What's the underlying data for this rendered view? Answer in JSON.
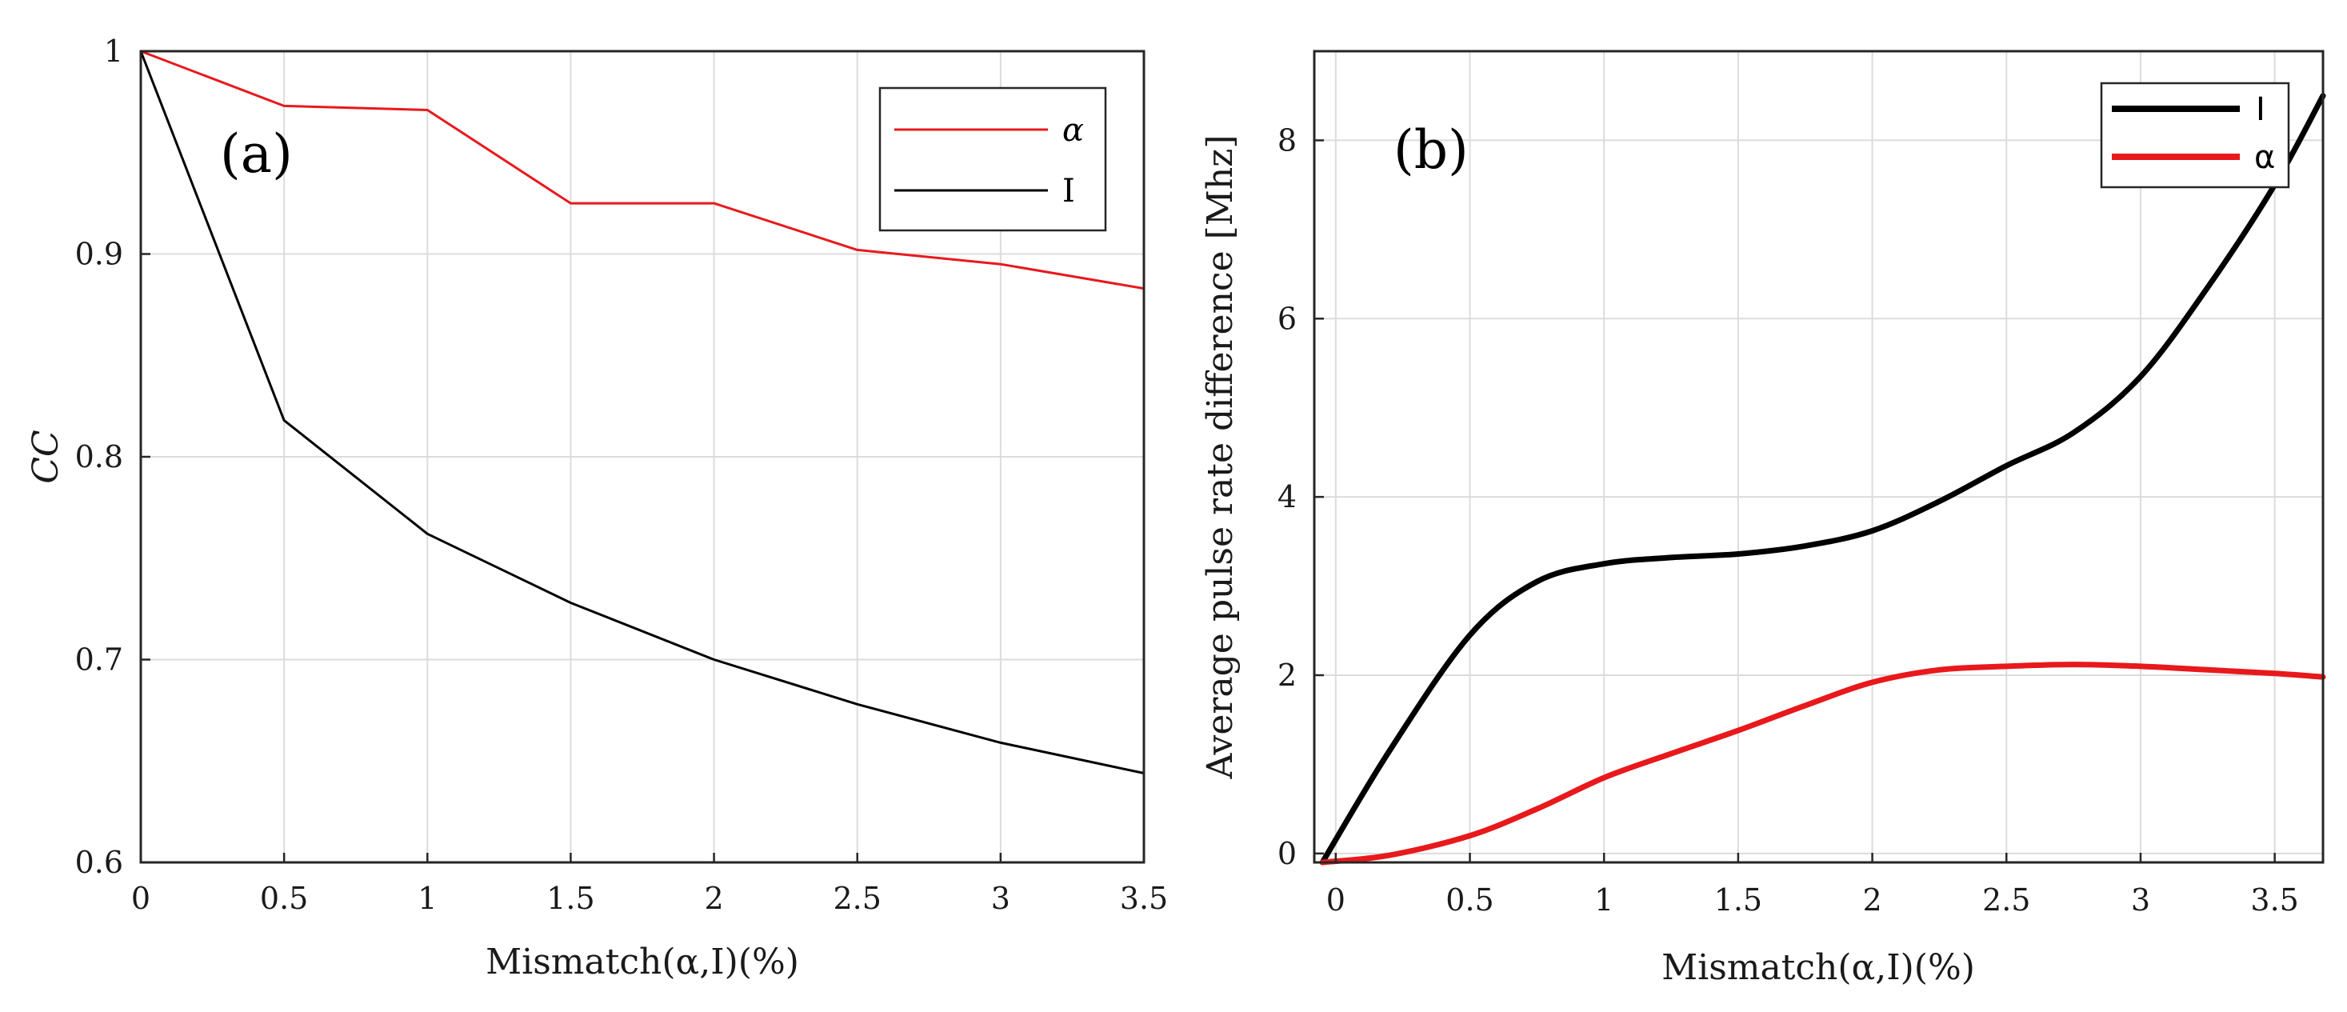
{
  "chart_data": [
    {
      "type": "line",
      "panel_label": "(a)",
      "xlabel": "Mismatch(α,I)(%)",
      "ylabel": "CC",
      "xlim": [
        0,
        3.5
      ],
      "ylim": [
        0.6,
        1.0
      ],
      "grid": true,
      "legend_position": "top-right",
      "x_ticks": [
        0,
        0.5,
        1,
        1.5,
        2,
        2.5,
        3,
        3.5
      ],
      "x_tick_labels": [
        "0",
        "0.5",
        "1",
        "1.5",
        "2",
        "2.5",
        "3",
        "3.5"
      ],
      "y_ticks": [
        0.6,
        0.7,
        0.8,
        0.9,
        1.0
      ],
      "y_tick_labels": [
        "0.6",
        "0.7",
        "0.8",
        "0.9",
        "1"
      ],
      "x": [
        0,
        0.5,
        1,
        1.5,
        2,
        2.5,
        3,
        3.5
      ],
      "series": [
        {
          "name": "α",
          "color": "#e8191c",
          "values": [
            1.0,
            0.973,
            0.971,
            0.925,
            0.925,
            0.902,
            0.895,
            0.883
          ]
        },
        {
          "name": "I",
          "color": "#000000",
          "values": [
            1.0,
            0.818,
            0.762,
            0.728,
            0.7,
            0.678,
            0.659,
            0.644
          ]
        }
      ]
    },
    {
      "type": "line",
      "panel_label": "(b)",
      "xlabel": "Mismatch(α,I)(%)",
      "ylabel": "Average pulse rate difference [Mhz]",
      "xlim": [
        -0.08,
        3.68
      ],
      "ylim": [
        -0.1,
        9.0
      ],
      "grid": true,
      "legend_position": "top-right",
      "x_ticks": [
        0,
        0.5,
        1,
        1.5,
        2,
        2.5,
        3,
        3.5
      ],
      "x_tick_labels": [
        "0",
        "0.5",
        "1",
        "1.5",
        "2",
        "2.5",
        "3",
        "3.5"
      ],
      "y_ticks": [
        0,
        2,
        4,
        6,
        8
      ],
      "y_tick_labels": [
        "0",
        "2",
        "4",
        "6",
        "8"
      ],
      "x": [
        -0.05,
        0.2,
        0.5,
        0.75,
        1.0,
        1.25,
        1.5,
        1.75,
        2.0,
        2.25,
        2.5,
        2.75,
        3.0,
        3.25,
        3.5,
        3.68
      ],
      "series": [
        {
          "name": "I",
          "color": "#000000",
          "values": [
            -0.1,
            1.15,
            2.45,
            3.05,
            3.25,
            3.32,
            3.36,
            3.45,
            3.62,
            3.95,
            4.35,
            4.72,
            5.35,
            6.35,
            7.5,
            8.5
          ]
        },
        {
          "name": "α",
          "color": "#e8191c",
          "values": [
            -0.1,
            -0.02,
            0.2,
            0.5,
            0.85,
            1.12,
            1.38,
            1.66,
            1.92,
            2.06,
            2.1,
            2.12,
            2.1,
            2.06,
            2.02,
            1.98
          ]
        }
      ]
    }
  ]
}
